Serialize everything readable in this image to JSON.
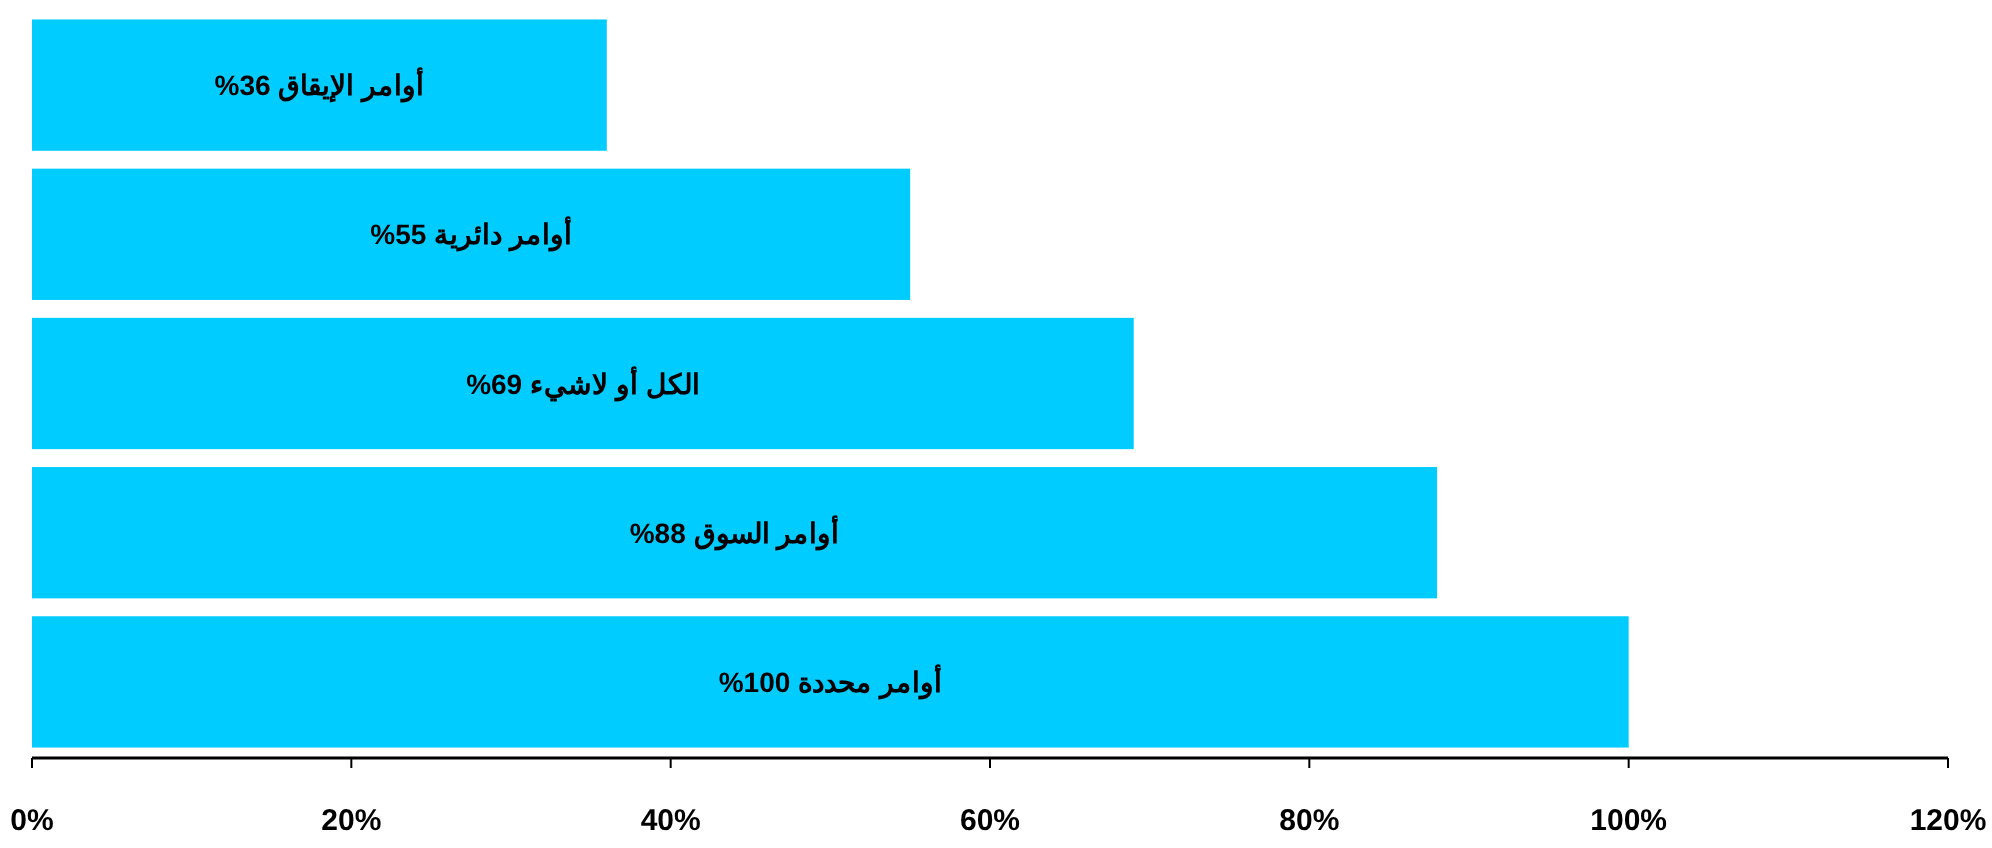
{
  "chart_data": {
    "type": "bar",
    "orientation": "horizontal",
    "categories": [
      "أوامر الإيقاق",
      "أوامر دائرية",
      "الكل أو لاشيء",
      "أوامر السوق",
      "أوامر محددة"
    ],
    "values": [
      36,
      55,
      69,
      88,
      100
    ],
    "value_labels": [
      "%36",
      "%55",
      "%69",
      "%88",
      "%100"
    ],
    "color": "#00ccff",
    "xlim": [
      0,
      120
    ],
    "xticks": [
      {
        "value": 0,
        "label": "0%"
      },
      {
        "value": 20,
        "label": "20%"
      },
      {
        "value": 40,
        "label": "40%"
      },
      {
        "value": 60,
        "label": "60%"
      },
      {
        "value": 80,
        "label": "80%"
      },
      {
        "value": 100,
        "label": "100%"
      },
      {
        "value": 120,
        "label": "120%"
      }
    ],
    "grid": false
  }
}
